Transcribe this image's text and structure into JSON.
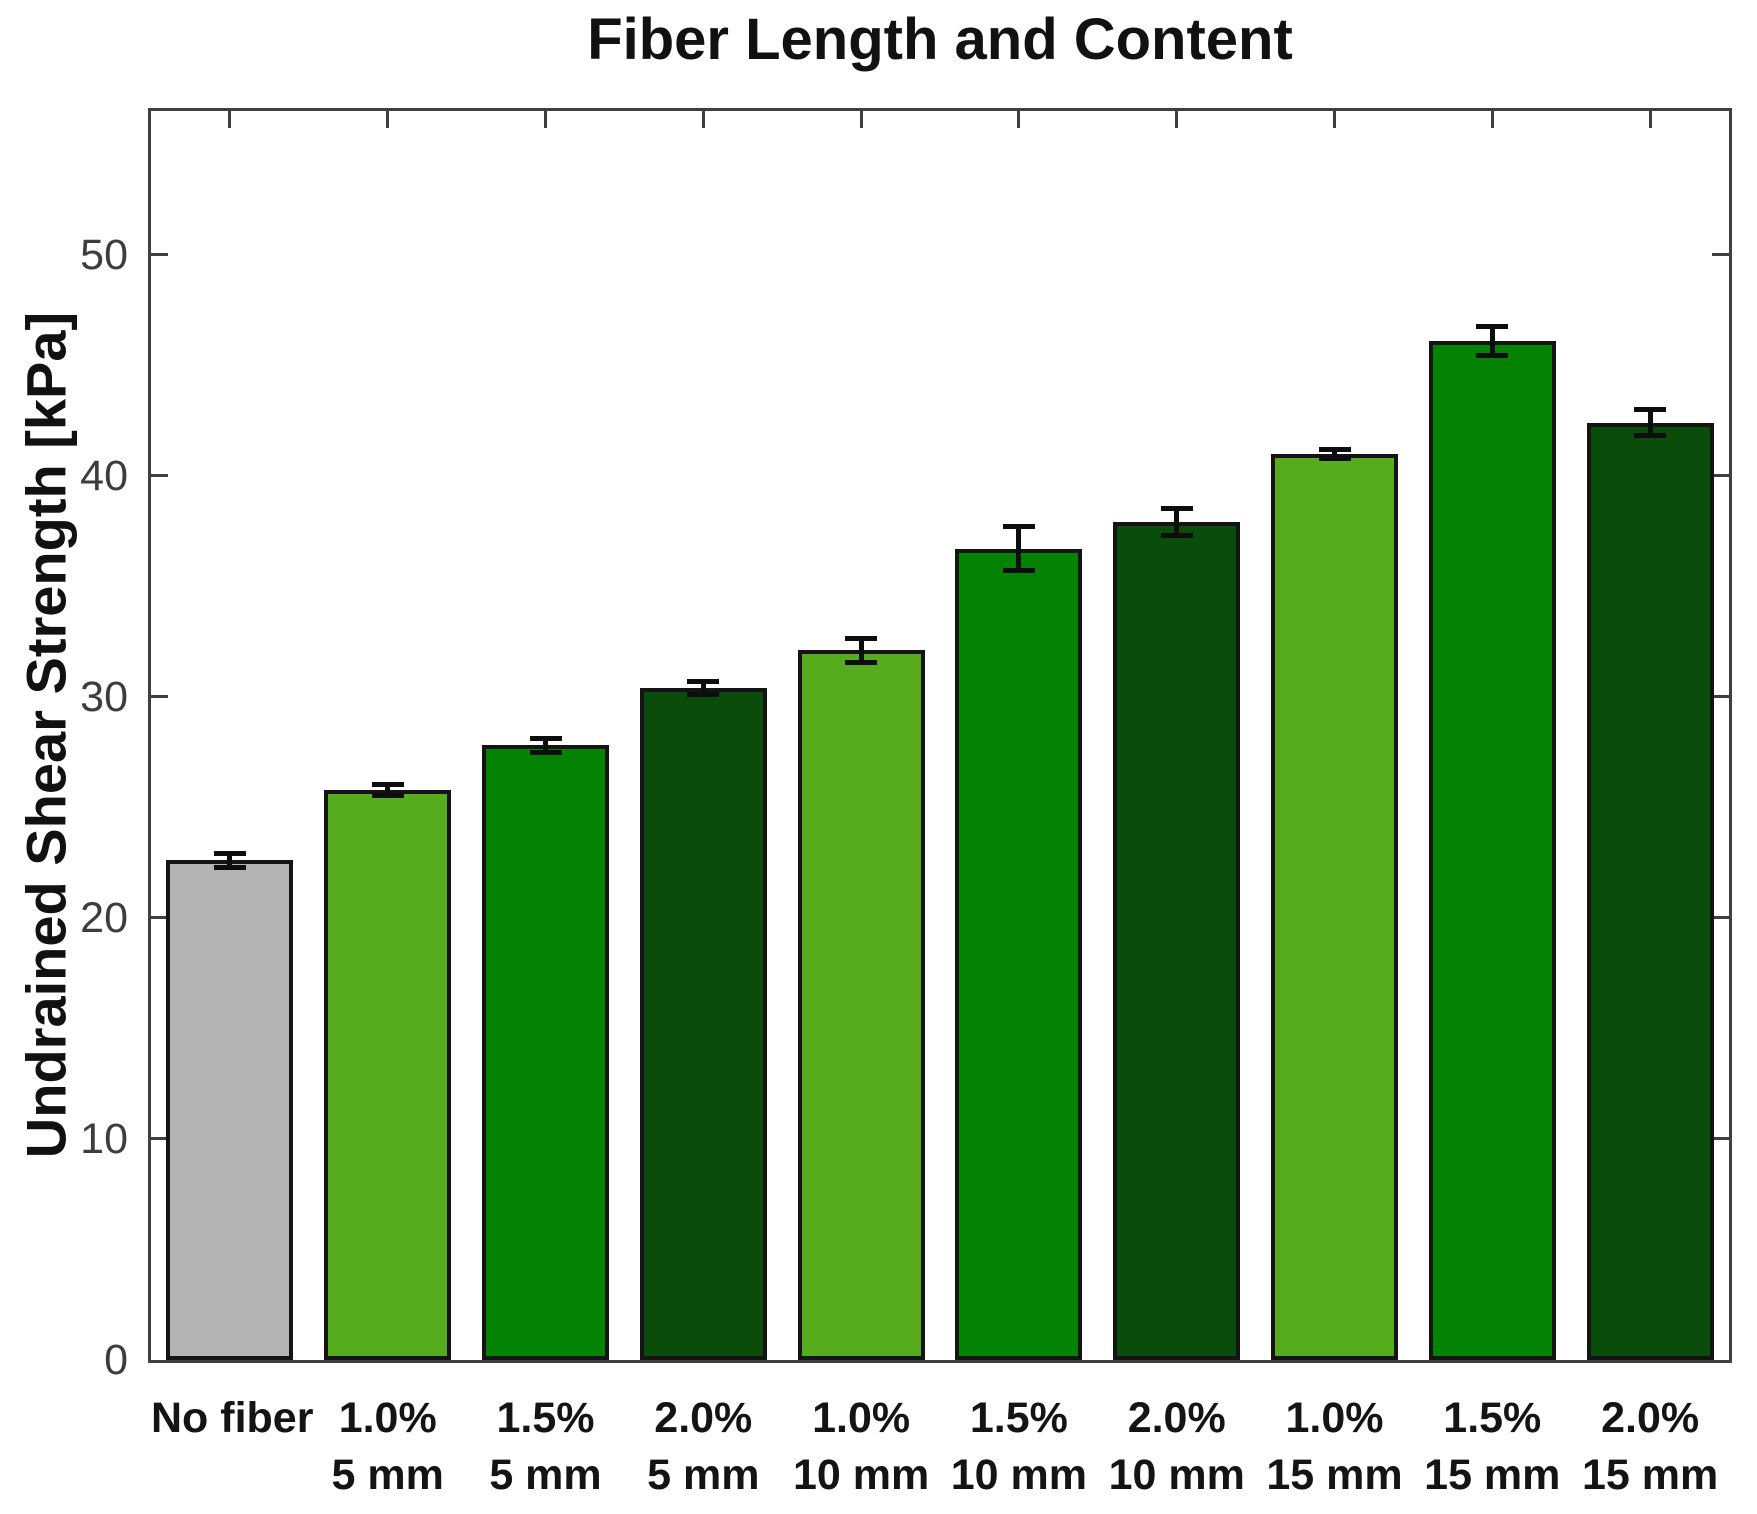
{
  "chart_data": {
    "type": "bar",
    "title": "Fiber Length and Content",
    "ylabel": "Undrained Shear Strength [kPa]",
    "xlabel": "",
    "ylim": [
      0,
      56.5
    ],
    "yticks": [
      0,
      10,
      20,
      30,
      40,
      50
    ],
    "grid": false,
    "legend": null,
    "box": true,
    "tick_direction": "in",
    "categories": [
      {
        "line1": "No fiber",
        "line2": ""
      },
      {
        "line1": "1.0%",
        "line2": "5 mm"
      },
      {
        "line1": "1.5%",
        "line2": "5 mm"
      },
      {
        "line1": "2.0%",
        "line2": "5 mm"
      },
      {
        "line1": "1.0%",
        "line2": "10 mm"
      },
      {
        "line1": "1.5%",
        "line2": "10 mm"
      },
      {
        "line1": "2.0%",
        "line2": "10 mm"
      },
      {
        "line1": "1.0%",
        "line2": "15 mm"
      },
      {
        "line1": "1.5%",
        "line2": "15 mm"
      },
      {
        "line1": "2.0%",
        "line2": "15 mm"
      }
    ],
    "values": [
      22.6,
      25.8,
      27.8,
      30.4,
      32.1,
      36.7,
      37.9,
      41.0,
      46.1,
      42.4
    ],
    "errors": [
      0.3,
      0.25,
      0.3,
      0.3,
      0.55,
      1.0,
      0.6,
      0.2,
      0.65,
      0.6
    ],
    "bar_colors": [
      "#B3B3B3",
      "#57AC1E",
      "#038203",
      "#0A4D0A",
      "#57AC1E",
      "#038203",
      "#0A4D0A",
      "#57AC1E",
      "#038203",
      "#0A4D0A"
    ],
    "color_legend": {
      "no_fiber": "#B3B3B3",
      "content_1_0_percent": "#57AC1E",
      "content_1_5_percent": "#038203",
      "content_2_0_percent": "#0A4D0A"
    },
    "edge_color": "#141414",
    "error_bar_color": "#0d0d0d",
    "axis_color": "#3f3f3f",
    "tick_label_color": "#3d3d3d",
    "background_color": "#FFFFFF"
  }
}
